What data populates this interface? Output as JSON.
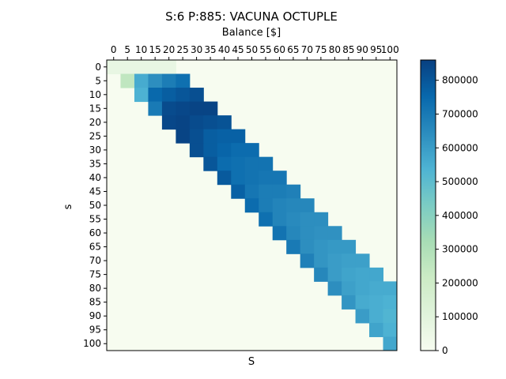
{
  "chart_data": {
    "type": "heatmap",
    "title": "S:6 P:885: VACUNA OCTUPLE",
    "xlabel_top": "Balance [$]",
    "xlabel_bottom": "S",
    "ylabel": "s",
    "x_ticks": [
      "0",
      "5",
      "10",
      "15",
      "20",
      "25",
      "30",
      "35",
      "40",
      "45",
      "50",
      "55",
      "60",
      "65",
      "70",
      "75",
      "80",
      "85",
      "90",
      "95",
      "100"
    ],
    "y_ticks": [
      "0",
      "5",
      "10",
      "15",
      "20",
      "25",
      "30",
      "35",
      "40",
      "45",
      "50",
      "55",
      "60",
      "65",
      "70",
      "75",
      "80",
      "85",
      "90",
      "95",
      "100"
    ],
    "colorbar": {
      "colormap": "GnBu",
      "ticks": [
        "0",
        "100000",
        "200000",
        "300000",
        "400000",
        "500000",
        "600000",
        "700000",
        "800000"
      ],
      "vmin": 0,
      "vmax": 860000
    },
    "grid": false,
    "values": [
      [
        0,
        0,
        0,
        0,
        0,
        0,
        0,
        0,
        0,
        0,
        0,
        0,
        0,
        0,
        0,
        0,
        0,
        0,
        0,
        0,
        0
      ],
      [
        0,
        250000,
        560000,
        640000,
        690000,
        730000,
        0,
        0,
        0,
        0,
        0,
        0,
        0,
        0,
        0,
        0,
        0,
        0,
        0,
        0,
        0
      ],
      [
        0,
        0,
        540000,
        750000,
        780000,
        800000,
        820000,
        0,
        0,
        0,
        0,
        0,
        0,
        0,
        0,
        0,
        0,
        0,
        0,
        0,
        0
      ],
      [
        0,
        0,
        0,
        700000,
        830000,
        840000,
        850000,
        850000,
        0,
        0,
        0,
        0,
        0,
        0,
        0,
        0,
        0,
        0,
        0,
        0,
        0
      ],
      [
        0,
        0,
        0,
        0,
        840000,
        850000,
        830000,
        820000,
        810000,
        0,
        0,
        0,
        0,
        0,
        0,
        0,
        0,
        0,
        0,
        0,
        0
      ],
      [
        0,
        0,
        0,
        0,
        0,
        850000,
        820000,
        780000,
        770000,
        770000,
        0,
        0,
        0,
        0,
        0,
        0,
        0,
        0,
        0,
        0,
        0
      ],
      [
        0,
        0,
        0,
        0,
        0,
        0,
        820000,
        780000,
        760000,
        740000,
        740000,
        0,
        0,
        0,
        0,
        0,
        0,
        0,
        0,
        0,
        0
      ],
      [
        0,
        0,
        0,
        0,
        0,
        0,
        0,
        800000,
        740000,
        730000,
        720000,
        720000,
        0,
        0,
        0,
        0,
        0,
        0,
        0,
        0,
        0
      ],
      [
        0,
        0,
        0,
        0,
        0,
        0,
        0,
        0,
        790000,
        730000,
        720000,
        710000,
        710000,
        0,
        0,
        0,
        0,
        0,
        0,
        0,
        0
      ],
      [
        0,
        0,
        0,
        0,
        0,
        0,
        0,
        0,
        0,
        770000,
        710000,
        690000,
        690000,
        680000,
        0,
        0,
        0,
        0,
        0,
        0,
        0
      ],
      [
        0,
        0,
        0,
        0,
        0,
        0,
        0,
        0,
        0,
        0,
        740000,
        690000,
        670000,
        660000,
        660000,
        0,
        0,
        0,
        0,
        0,
        0
      ],
      [
        0,
        0,
        0,
        0,
        0,
        0,
        0,
        0,
        0,
        0,
        0,
        730000,
        670000,
        650000,
        640000,
        640000,
        0,
        0,
        0,
        0,
        0
      ],
      [
        0,
        0,
        0,
        0,
        0,
        0,
        0,
        0,
        0,
        0,
        0,
        0,
        720000,
        660000,
        640000,
        630000,
        630000,
        0,
        0,
        0,
        0
      ],
      [
        0,
        0,
        0,
        0,
        0,
        0,
        0,
        0,
        0,
        0,
        0,
        0,
        0,
        700000,
        640000,
        620000,
        610000,
        610000,
        0,
        0,
        0
      ],
      [
        0,
        0,
        0,
        0,
        0,
        0,
        0,
        0,
        0,
        0,
        0,
        0,
        0,
        0,
        680000,
        620000,
        600000,
        590000,
        590000,
        0,
        0
      ],
      [
        0,
        0,
        0,
        0,
        0,
        0,
        0,
        0,
        0,
        0,
        0,
        0,
        0,
        0,
        0,
        660000,
        600000,
        580000,
        570000,
        570000,
        0
      ],
      [
        0,
        0,
        0,
        0,
        0,
        0,
        0,
        0,
        0,
        0,
        0,
        0,
        0,
        0,
        0,
        0,
        640000,
        590000,
        570000,
        560000,
        560000
      ],
      [
        0,
        0,
        0,
        0,
        0,
        0,
        0,
        0,
        0,
        0,
        0,
        0,
        0,
        0,
        0,
        0,
        0,
        620000,
        560000,
        550000,
        540000
      ],
      [
        0,
        0,
        0,
        0,
        0,
        0,
        0,
        0,
        0,
        0,
        0,
        0,
        0,
        0,
        0,
        0,
        0,
        0,
        600000,
        550000,
        530000
      ],
      [
        0,
        0,
        0,
        0,
        0,
        0,
        0,
        0,
        0,
        0,
        0,
        0,
        0,
        0,
        0,
        0,
        0,
        0,
        0,
        580000,
        540000
      ],
      [
        0,
        0,
        0,
        0,
        0,
        0,
        0,
        0,
        0,
        0,
        0,
        0,
        0,
        0,
        0,
        0,
        0,
        0,
        0,
        0,
        570000
      ]
    ],
    "top_row_light_extent": 5
  }
}
